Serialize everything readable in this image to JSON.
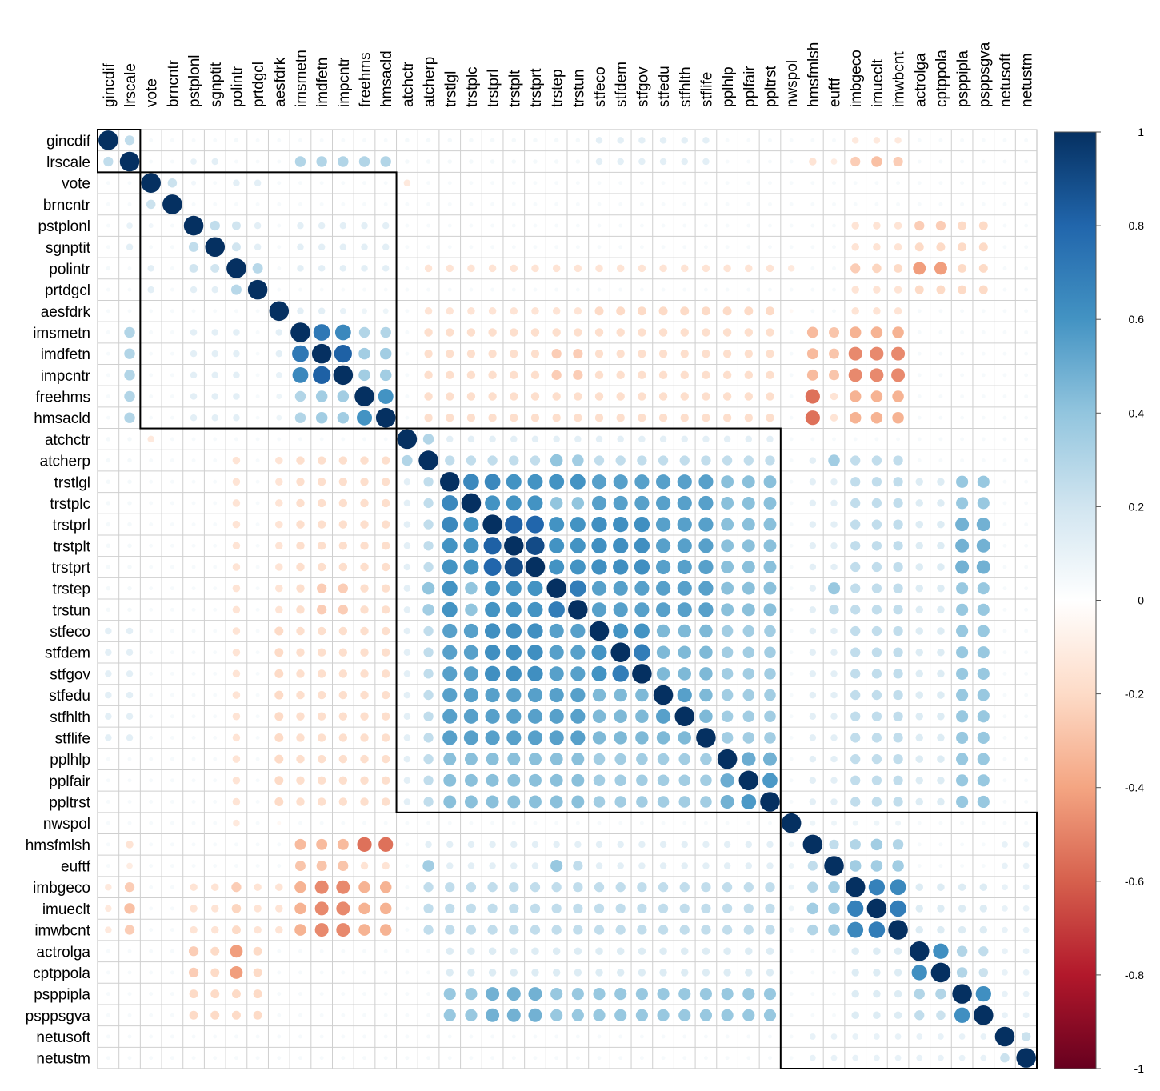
{
  "chart_data": {
    "type": "heatmap",
    "style": "circle correlation matrix",
    "variables": [
      "gincdif",
      "lrscale",
      "vote",
      "brncntr",
      "pstplonl",
      "sgnptit",
      "polintr",
      "prtdgcl",
      "aesfdrk",
      "imsmetn",
      "imdfetn",
      "impcntr",
      "freehms",
      "hmsacld",
      "atchctr",
      "atcherp",
      "trstlgl",
      "trstplc",
      "trstprl",
      "trstplt",
      "trstprt",
      "trstep",
      "trstun",
      "stfeco",
      "stfdem",
      "stfgov",
      "stfedu",
      "stfhlth",
      "stflife",
      "pplhlp",
      "pplfair",
      "ppltrst",
      "nwspol",
      "hmsfmlsh",
      "euftf",
      "imbgeco",
      "imueclt",
      "imwbcnt",
      "actrolga",
      "cptppola",
      "psppipla",
      "psppsgva",
      "netusoft",
      "netustm"
    ],
    "cluster_sizes": [
      2,
      12,
      18,
      12
    ],
    "legend": {
      "ticks": [
        "1",
        "0.8",
        "0.6",
        "0.4",
        "0.2",
        "0",
        "-0.2",
        "-0.4",
        "-0.6",
        "-0.8",
        "-1"
      ],
      "range": [
        -1,
        1
      ],
      "colors": [
        "#67001F",
        "#B2182B",
        "#D6604D",
        "#F4A582",
        "#FDDBC7",
        "#FFFFFF",
        "#D1E5F0",
        "#92C5DE",
        "#4393C3",
        "#2166AC",
        "#053061"
      ]
    }
  }
}
